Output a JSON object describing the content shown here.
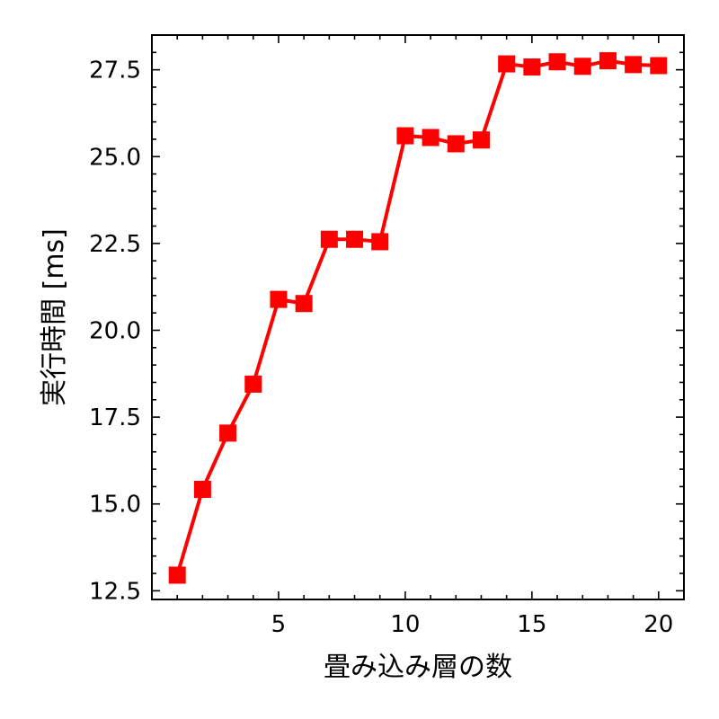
{
  "chart_data": {
    "type": "line",
    "title": "",
    "xlabel": "畳み込み層の数",
    "ylabel": "実行時間 [ms]",
    "xlim": [
      0,
      21
    ],
    "ylim": [
      12.25,
      28.5
    ],
    "xticks": [
      5,
      10,
      15,
      20
    ],
    "yticks": [
      12.5,
      15.0,
      17.5,
      20.0,
      22.5,
      25.0,
      27.5
    ],
    "xtick_labels": [
      "5",
      "10",
      "15",
      "20"
    ],
    "ytick_labels": [
      "12.5",
      "15.0",
      "17.5",
      "20.0",
      "22.5",
      "25.0",
      "27.5"
    ],
    "grid": false,
    "series": [
      {
        "x": [
          1,
          2,
          3,
          4,
          5,
          6,
          7,
          8,
          9,
          10,
          11,
          12,
          13,
          14,
          15,
          16,
          17,
          18,
          19,
          20
        ],
        "y": [
          12.95,
          15.42,
          17.04,
          18.45,
          20.89,
          20.77,
          22.62,
          22.62,
          22.55,
          25.6,
          25.55,
          25.37,
          25.48,
          27.67,
          27.58,
          27.73,
          27.6,
          27.76,
          27.65,
          27.62
        ],
        "color": "#ff0000",
        "marker": "square"
      }
    ]
  }
}
